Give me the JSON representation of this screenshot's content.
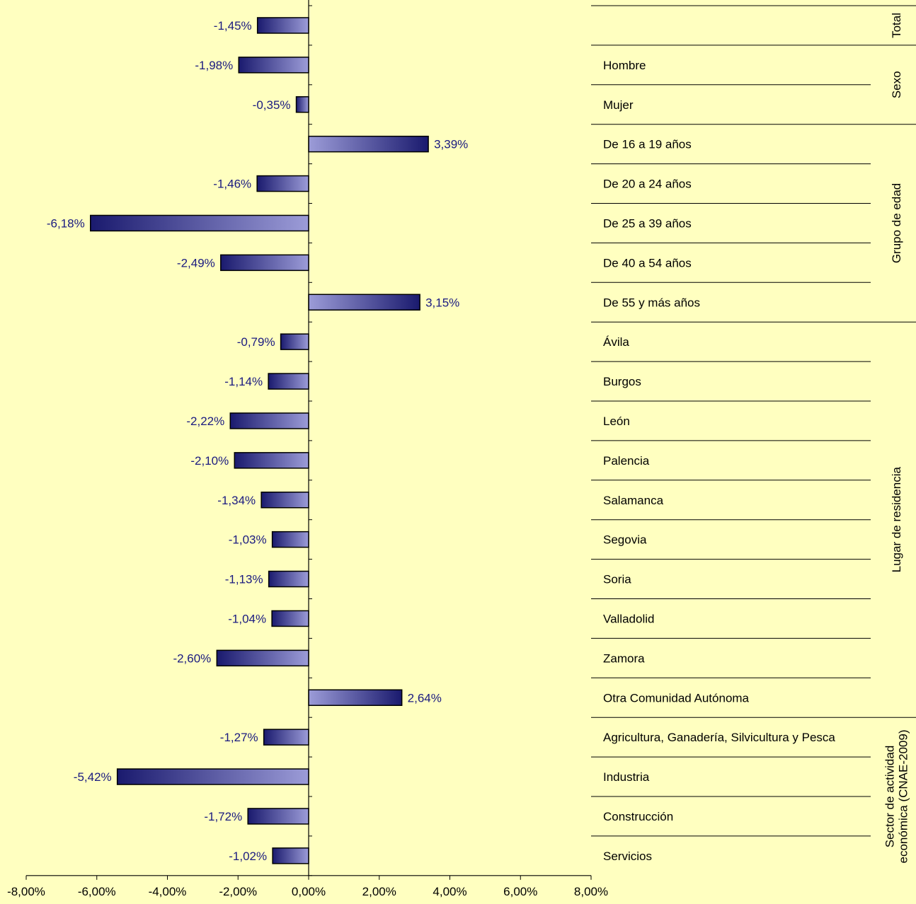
{
  "chart_data": {
    "type": "bar",
    "orientation": "horizontal",
    "grid": false,
    "xlim": [
      -8,
      8
    ],
    "x_ticks": [
      "-8,00%",
      "-6,00%",
      "-4,00%",
      "-2,00%",
      "0,00%",
      "2,00%",
      "4,00%",
      "6,00%",
      "8,00%"
    ],
    "categories": [
      "",
      "Hombre",
      "Mujer",
      "De 16 a 19 años",
      "De 20 a 24 años",
      "De 25 a 39 años",
      "De 40 a 54 años",
      "De 55 y más años",
      "Ávila",
      "Burgos",
      "León",
      "Palencia",
      "Salamanca",
      "Segovia",
      "Soria",
      "Valladolid",
      "Zamora",
      "Otra Comunidad Autónoma",
      "Agricultura, Ganadería, Silvicultura y Pesca",
      "Industria",
      "Construcción",
      "Servicios"
    ],
    "values": [
      -1.45,
      -1.98,
      -0.35,
      3.39,
      -1.46,
      -6.18,
      -2.49,
      3.15,
      -0.79,
      -1.14,
      -2.22,
      -2.1,
      -1.34,
      -1.03,
      -1.13,
      -1.04,
      -2.6,
      2.64,
      -1.27,
      -5.42,
      -1.72,
      -1.02
    ],
    "data_labels": [
      "-1,45%",
      "-1,98%",
      "-0,35%",
      "3,39%",
      "-1,46%",
      "-6,18%",
      "-2,49%",
      "3,15%",
      "-0,79%",
      "-1,14%",
      "-2,22%",
      "-2,10%",
      "-1,34%",
      "-1,03%",
      "-1,13%",
      "-1,04%",
      "-2,60%",
      "2,64%",
      "-1,27%",
      "-5,42%",
      "-1,72%",
      "-1,02%"
    ],
    "groups": [
      {
        "name": "Total",
        "label_lines": [
          "Total"
        ],
        "start": 0,
        "count": 1
      },
      {
        "name": "Sexo",
        "label_lines": [
          "Sexo"
        ],
        "start": 1,
        "count": 2
      },
      {
        "name": "Grupo de edad",
        "label_lines": [
          "Grupo de edad"
        ],
        "start": 3,
        "count": 5
      },
      {
        "name": "Lugar de residencia",
        "label_lines": [
          "Lugar de residencia"
        ],
        "start": 8,
        "count": 10
      },
      {
        "name": "Sector de actividad económica (CNAE-2009)",
        "label_lines": [
          "Sector de actividad",
          "económica (CNAE-2009)"
        ],
        "start": 18,
        "count": 4
      }
    ],
    "colors": {
      "background": "#FFFFC0",
      "bar_dark": "#1A1A6E",
      "bar_light": "#9C9CD8",
      "label_text": "#1A1A80",
      "axis": "#000000"
    }
  }
}
